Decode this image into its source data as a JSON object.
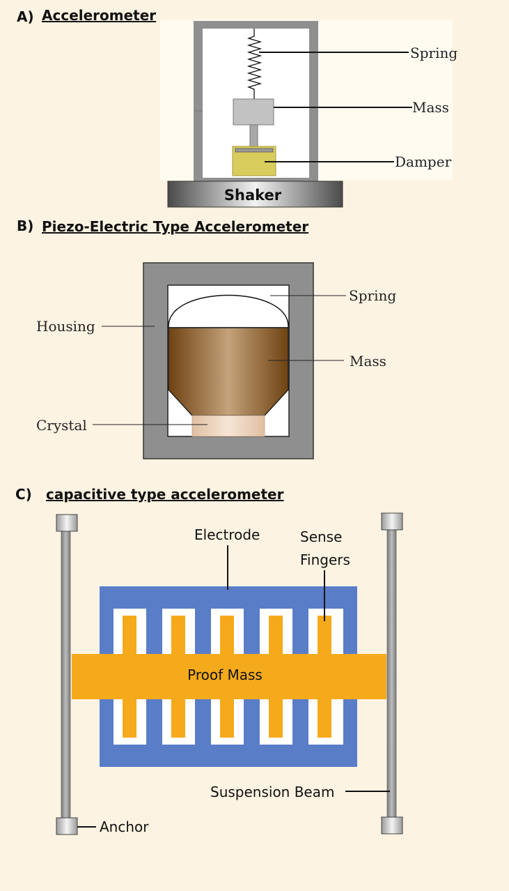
{
  "section_a": {
    "letter": "A)",
    "title": "Accelerometer",
    "labels": {
      "spring": "Spring",
      "mass": "Mass",
      "damper": "Damper",
      "shaker": "Shaker"
    }
  },
  "section_b": {
    "letter": "B)",
    "title": "Piezo-Electric Type Accelerometer",
    "labels": {
      "spring": "Spring",
      "housing": "Housing",
      "mass": "Mass",
      "crystal": "Crystal"
    }
  },
  "section_c": {
    "letter": "C)",
    "title": "capacitive type accelerometer",
    "labels": {
      "electrode": "Electrode",
      "sense_line1": "Sense",
      "sense_line2": "Fingers",
      "proof_mass": "Proof Mass",
      "suspension_beam": "Suspension Beam",
      "anchor": "Anchor"
    }
  },
  "colors": {
    "background": "#fdf3e2",
    "housing_gray": "#8f8f8f",
    "damper_yellow": "#d8cc5c",
    "piezo_mass_brown": "#8a5a22",
    "crystal_pink": "#ecd3bd",
    "electrode_blue": "#5a7dc8",
    "proof_mass_orange": "#f5aa1c"
  }
}
